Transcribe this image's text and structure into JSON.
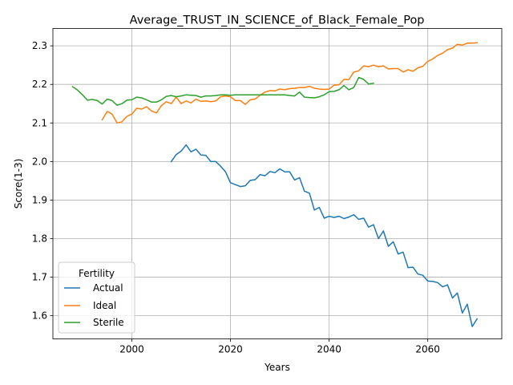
{
  "chart_data": {
    "type": "line",
    "title": "Average_TRUST_IN_SCIENCE_of_Black_Female_Pop",
    "xlabel": "Years",
    "ylabel": "Score(1-3)",
    "xlim": [
      1984,
      2075
    ],
    "ylim": [
      1.54,
      2.345
    ],
    "xticks": [
      2000,
      2020,
      2040,
      2060
    ],
    "yticks": [
      1.6,
      1.7,
      1.8,
      1.9,
      2.0,
      2.1,
      2.2,
      2.3
    ],
    "grid": true,
    "legend": {
      "title": "Fertility",
      "placement": "lower-left"
    },
    "series": [
      {
        "name": "Actual",
        "color": "#1f77b4",
        "x": [
          2008,
          2009,
          2010,
          2011,
          2012,
          2013,
          2014,
          2015,
          2016,
          2017,
          2018,
          2019,
          2020,
          2021,
          2022,
          2023,
          2024,
          2025,
          2026,
          2027,
          2028,
          2029,
          2030,
          2031,
          2032,
          2033,
          2034,
          2035,
          2036,
          2037,
          2038,
          2039,
          2040,
          2041,
          2042,
          2043,
          2044,
          2045,
          2046,
          2047,
          2048,
          2049,
          2050,
          2051,
          2052,
          2053,
          2054,
          2055,
          2056,
          2057,
          2058,
          2059,
          2060,
          2061,
          2062,
          2063,
          2064,
          2065,
          2066,
          2067,
          2068,
          2069,
          2070
        ],
        "values": [
          2.0,
          2.018,
          2.027,
          2.043,
          2.025,
          2.032,
          2.017,
          2.016,
          2.0,
          2.0,
          1.988,
          1.973,
          1.945,
          1.94,
          1.935,
          1.937,
          1.951,
          1.953,
          1.966,
          1.963,
          1.974,
          1.971,
          1.981,
          1.973,
          1.973,
          1.952,
          1.958,
          1.923,
          1.918,
          1.874,
          1.881,
          1.853,
          1.858,
          1.855,
          1.858,
          1.852,
          1.856,
          1.862,
          1.85,
          1.853,
          1.83,
          1.836,
          1.8,
          1.82,
          1.78,
          1.792,
          1.76,
          1.765,
          1.725,
          1.726,
          1.708,
          1.705,
          1.69,
          1.689,
          1.686,
          1.675,
          1.68,
          1.646,
          1.659,
          1.607,
          1.63,
          1.572,
          1.592
        ]
      },
      {
        "name": "Ideal",
        "color": "#ff7f0e",
        "x": [
          1994,
          1995,
          1996,
          1997,
          1998,
          1999,
          2000,
          2001,
          2002,
          2003,
          2004,
          2005,
          2006,
          2007,
          2008,
          2009,
          2010,
          2011,
          2012,
          2013,
          2014,
          2015,
          2016,
          2017,
          2018,
          2019,
          2020,
          2021,
          2022,
          2023,
          2024,
          2025,
          2026,
          2027,
          2028,
          2029,
          2030,
          2031,
          2032,
          2033,
          2034,
          2035,
          2036,
          2037,
          2038,
          2039,
          2040,
          2041,
          2042,
          2043,
          2044,
          2045,
          2046,
          2047,
          2048,
          2049,
          2050,
          2051,
          2052,
          2053,
          2054,
          2055,
          2056,
          2057,
          2058,
          2059,
          2060,
          2061,
          2062,
          2063,
          2064,
          2065,
          2066,
          2067,
          2068,
          2069,
          2070
        ],
        "values": [
          2.108,
          2.13,
          2.123,
          2.1,
          2.103,
          2.117,
          2.123,
          2.138,
          2.136,
          2.142,
          2.131,
          2.126,
          2.145,
          2.155,
          2.15,
          2.167,
          2.15,
          2.157,
          2.152,
          2.162,
          2.156,
          2.157,
          2.155,
          2.157,
          2.168,
          2.17,
          2.168,
          2.158,
          2.158,
          2.148,
          2.16,
          2.162,
          2.172,
          2.18,
          2.184,
          2.183,
          2.188,
          2.186,
          2.189,
          2.19,
          2.192,
          2.192,
          2.195,
          2.19,
          2.188,
          2.187,
          2.188,
          2.198,
          2.199,
          2.213,
          2.212,
          2.232,
          2.235,
          2.248,
          2.246,
          2.25,
          2.246,
          2.248,
          2.24,
          2.241,
          2.241,
          2.232,
          2.238,
          2.234,
          2.243,
          2.247,
          2.26,
          2.266,
          2.275,
          2.281,
          2.29,
          2.294,
          2.304,
          2.302,
          2.307,
          2.307,
          2.308
        ]
      },
      {
        "name": "Sterile",
        "color": "#2ca02c",
        "x": [
          1988,
          1989,
          1990,
          1991,
          1992,
          1993,
          1994,
          1995,
          1996,
          1997,
          1998,
          1999,
          2000,
          2001,
          2002,
          2003,
          2004,
          2005,
          2006,
          2007,
          2008,
          2009,
          2010,
          2011,
          2012,
          2013,
          2014,
          2015,
          2016,
          2017,
          2018,
          2019,
          2020,
          2021,
          2022,
          2023,
          2024,
          2025,
          2026,
          2027,
          2028,
          2029,
          2030,
          2031,
          2032,
          2033,
          2034,
          2035,
          2036,
          2037,
          2038,
          2039,
          2040,
          2041,
          2042,
          2043,
          2044,
          2045,
          2046,
          2047,
          2048,
          2049
        ],
        "values": [
          2.194,
          2.185,
          2.173,
          2.159,
          2.161,
          2.158,
          2.149,
          2.162,
          2.158,
          2.146,
          2.15,
          2.159,
          2.16,
          2.167,
          2.165,
          2.16,
          2.154,
          2.154,
          2.16,
          2.169,
          2.171,
          2.168,
          2.17,
          2.173,
          2.172,
          2.171,
          2.167,
          2.17,
          2.17,
          2.171,
          2.173,
          2.173,
          2.172,
          2.173,
          2.173,
          2.173,
          2.173,
          2.173,
          2.173,
          2.173,
          2.173,
          2.173,
          2.173,
          2.173,
          2.171,
          2.17,
          2.18,
          2.167,
          2.166,
          2.165,
          2.168,
          2.173,
          2.181,
          2.182,
          2.186,
          2.197,
          2.186,
          2.192,
          2.218,
          2.213,
          2.201,
          2.203
        ]
      }
    ]
  }
}
